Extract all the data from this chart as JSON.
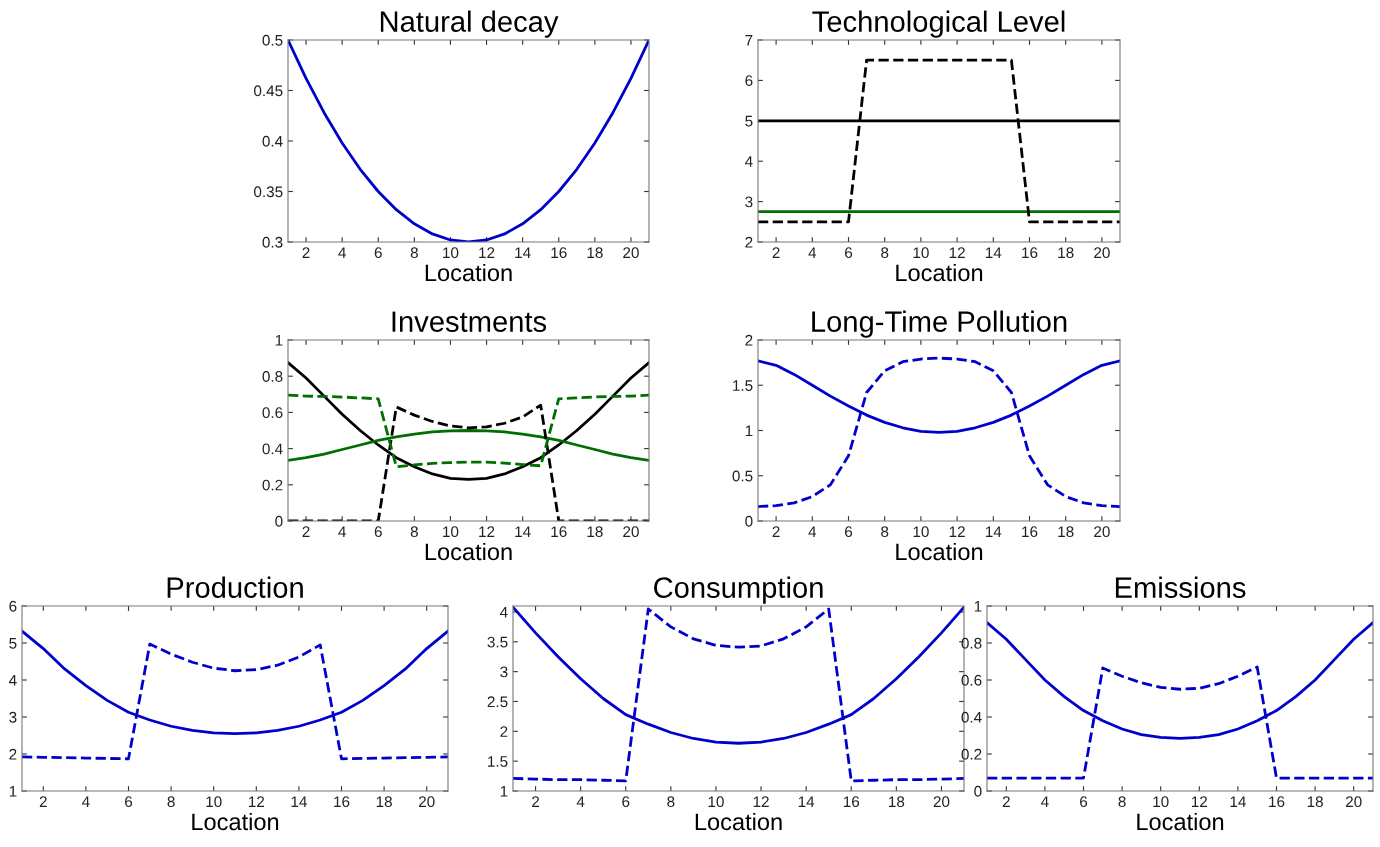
{
  "chart_data": [
    {
      "type": "line",
      "title": "Natural decay",
      "xlabel": "Location",
      "x": [
        1,
        2,
        3,
        4,
        5,
        6,
        7,
        8,
        9,
        10,
        11,
        12,
        13,
        14,
        15,
        16,
        17,
        18,
        19,
        20,
        21
      ],
      "xlim": [
        1,
        21
      ],
      "xticks": [
        2,
        4,
        6,
        8,
        10,
        12,
        14,
        16,
        18,
        20
      ],
      "ylim": [
        0.3,
        0.5
      ],
      "yticks": [
        0.3,
        0.35,
        0.4,
        0.45,
        0.5
      ],
      "grid": false,
      "series": [
        {
          "color": "#0000cc",
          "line_style": "solid",
          "values": [
            0.5,
            0.462,
            0.428,
            0.398,
            0.372,
            0.35,
            0.332,
            0.318,
            0.308,
            0.302,
            0.3,
            0.302,
            0.308,
            0.318,
            0.332,
            0.35,
            0.372,
            0.398,
            0.428,
            0.462,
            0.5
          ]
        }
      ]
    },
    {
      "type": "line",
      "title": "Technological Level",
      "xlabel": "Location",
      "x": [
        1,
        2,
        3,
        4,
        5,
        6,
        7,
        8,
        9,
        10,
        11,
        12,
        13,
        14,
        15,
        16,
        17,
        18,
        19,
        20,
        21
      ],
      "xlim": [
        1,
        21
      ],
      "xticks": [
        2,
        4,
        6,
        8,
        10,
        12,
        14,
        16,
        18,
        20
      ],
      "ylim": [
        2,
        7
      ],
      "yticks": [
        2,
        3,
        4,
        5,
        6,
        7
      ],
      "grid": false,
      "series": [
        {
          "color": "#000000",
          "line_style": "solid",
          "values": [
            5,
            5,
            5,
            5,
            5,
            5,
            5,
            5,
            5,
            5,
            5,
            5,
            5,
            5,
            5,
            5,
            5,
            5,
            5,
            5,
            5
          ]
        },
        {
          "color": "#006e00",
          "line_style": "solid",
          "values": [
            2.75,
            2.75,
            2.75,
            2.75,
            2.75,
            2.75,
            2.75,
            2.75,
            2.75,
            2.75,
            2.75,
            2.75,
            2.75,
            2.75,
            2.75,
            2.75,
            2.75,
            2.75,
            2.75,
            2.75,
            2.75
          ]
        },
        {
          "color": "#000000",
          "line_style": "dashed",
          "values": [
            2.5,
            2.5,
            2.5,
            2.5,
            2.5,
            2.5,
            6.5,
            6.5,
            6.5,
            6.5,
            6.5,
            6.5,
            6.5,
            6.5,
            6.5,
            2.5,
            2.5,
            2.5,
            2.5,
            2.5,
            2.5
          ]
        }
      ]
    },
    {
      "type": "line",
      "title": "Investments",
      "xlabel": "Location",
      "x": [
        1,
        2,
        3,
        4,
        5,
        6,
        7,
        8,
        9,
        10,
        11,
        12,
        13,
        14,
        15,
        16,
        17,
        18,
        19,
        20,
        21
      ],
      "xlim": [
        1,
        21
      ],
      "xticks": [
        2,
        4,
        6,
        8,
        10,
        12,
        14,
        16,
        18,
        20
      ],
      "ylim": [
        0,
        1
      ],
      "yticks": [
        0,
        0.2,
        0.4,
        0.6,
        0.8,
        1
      ],
      "grid": false,
      "series": [
        {
          "color": "#000000",
          "line_style": "solid",
          "values": [
            0.875,
            0.79,
            0.69,
            0.59,
            0.5,
            0.42,
            0.35,
            0.3,
            0.26,
            0.235,
            0.23,
            0.235,
            0.26,
            0.3,
            0.35,
            0.42,
            0.5,
            0.59,
            0.69,
            0.79,
            0.875
          ]
        },
        {
          "color": "#006e00",
          "line_style": "solid",
          "values": [
            0.335,
            0.35,
            0.37,
            0.395,
            0.42,
            0.445,
            0.465,
            0.48,
            0.492,
            0.498,
            0.5,
            0.498,
            0.492,
            0.48,
            0.465,
            0.445,
            0.42,
            0.395,
            0.37,
            0.35,
            0.335
          ]
        },
        {
          "color": "#000000",
          "line_style": "dashed",
          "values": [
            0,
            0,
            0,
            0,
            0,
            0,
            0.63,
            0.585,
            0.55,
            0.525,
            0.515,
            0.52,
            0.54,
            0.575,
            0.64,
            0,
            0,
            0,
            0,
            0,
            0
          ]
        },
        {
          "color": "#006e00",
          "line_style": "dashed",
          "values": [
            0.695,
            0.69,
            0.688,
            0.685,
            0.68,
            0.675,
            0.3,
            0.31,
            0.318,
            0.323,
            0.325,
            0.325,
            0.32,
            0.312,
            0.305,
            0.675,
            0.68,
            0.685,
            0.688,
            0.69,
            0.695
          ]
        }
      ]
    },
    {
      "type": "line",
      "title": "Long-Time Pollution",
      "xlabel": "Location",
      "x": [
        1,
        2,
        3,
        4,
        5,
        6,
        7,
        8,
        9,
        10,
        11,
        12,
        13,
        14,
        15,
        16,
        17,
        18,
        19,
        20,
        21
      ],
      "xlim": [
        1,
        21
      ],
      "xticks": [
        2,
        4,
        6,
        8,
        10,
        12,
        14,
        16,
        18,
        20
      ],
      "ylim": [
        0,
        2
      ],
      "yticks": [
        0,
        0.5,
        1,
        1.5,
        2
      ],
      "grid": false,
      "series": [
        {
          "color": "#0000cc",
          "line_style": "solid",
          "values": [
            1.77,
            1.72,
            1.62,
            1.5,
            1.38,
            1.27,
            1.17,
            1.09,
            1.03,
            0.99,
            0.98,
            0.99,
            1.03,
            1.09,
            1.17,
            1.27,
            1.38,
            1.5,
            1.62,
            1.72,
            1.77
          ]
        },
        {
          "color": "#0000cc",
          "line_style": "dashed",
          "values": [
            0.16,
            0.17,
            0.2,
            0.27,
            0.4,
            0.72,
            1.42,
            1.66,
            1.76,
            1.79,
            1.8,
            1.79,
            1.76,
            1.66,
            1.42,
            0.72,
            0.4,
            0.27,
            0.2,
            0.17,
            0.16
          ]
        }
      ]
    },
    {
      "type": "line",
      "title": "Production",
      "xlabel": "Location",
      "x": [
        1,
        2,
        3,
        4,
        5,
        6,
        7,
        8,
        9,
        10,
        11,
        12,
        13,
        14,
        15,
        16,
        17,
        18,
        19,
        20,
        21
      ],
      "xlim": [
        1,
        21
      ],
      "xticks": [
        2,
        4,
        6,
        8,
        10,
        12,
        14,
        16,
        18,
        20
      ],
      "ylim": [
        1,
        6
      ],
      "yticks": [
        1,
        2,
        3,
        4,
        5,
        6
      ],
      "grid": false,
      "series": [
        {
          "color": "#0000cc",
          "line_style": "solid",
          "values": [
            5.32,
            4.85,
            4.3,
            3.85,
            3.45,
            3.13,
            2.92,
            2.75,
            2.64,
            2.57,
            2.55,
            2.57,
            2.64,
            2.75,
            2.92,
            3.13,
            3.45,
            3.85,
            4.3,
            4.85,
            5.32
          ]
        },
        {
          "color": "#0000cc",
          "line_style": "dashed",
          "values": [
            1.92,
            1.91,
            1.9,
            1.89,
            1.88,
            1.87,
            4.97,
            4.7,
            4.48,
            4.32,
            4.25,
            4.28,
            4.4,
            4.62,
            4.95,
            1.87,
            1.88,
            1.89,
            1.9,
            1.91,
            1.92
          ]
        }
      ]
    },
    {
      "type": "line",
      "title": "Consumption",
      "xlabel": "Location",
      "x": [
        1,
        2,
        3,
        4,
        5,
        6,
        7,
        8,
        9,
        10,
        11,
        12,
        13,
        14,
        15,
        16,
        17,
        18,
        19,
        20,
        21
      ],
      "xlim": [
        1,
        21
      ],
      "xticks": [
        2,
        4,
        6,
        8,
        10,
        12,
        14,
        16,
        18,
        20
      ],
      "ylim": [
        1,
        4.1
      ],
      "yticks": [
        1,
        1.5,
        2,
        2.5,
        3,
        3.5,
        4
      ],
      "grid": false,
      "series": [
        {
          "color": "#0000cc",
          "line_style": "solid",
          "values": [
            4.08,
            3.65,
            3.25,
            2.88,
            2.55,
            2.28,
            2.12,
            1.98,
            1.88,
            1.82,
            1.8,
            1.82,
            1.88,
            1.98,
            2.12,
            2.28,
            2.55,
            2.88,
            3.25,
            3.65,
            4.08
          ]
        },
        {
          "color": "#0000cc",
          "line_style": "dashed",
          "values": [
            1.21,
            1.2,
            1.19,
            1.19,
            1.18,
            1.17,
            4.05,
            3.75,
            3.55,
            3.44,
            3.41,
            3.43,
            3.55,
            3.75,
            4.05,
            1.17,
            1.18,
            1.19,
            1.19,
            1.2,
            1.21
          ]
        }
      ]
    },
    {
      "type": "line",
      "title": "Emissions",
      "xlabel": "Location",
      "x": [
        1,
        2,
        3,
        4,
        5,
        6,
        7,
        8,
        9,
        10,
        11,
        12,
        13,
        14,
        15,
        16,
        17,
        18,
        19,
        20,
        21
      ],
      "xlim": [
        1,
        21
      ],
      "xticks": [
        2,
        4,
        6,
        8,
        10,
        12,
        14,
        16,
        18,
        20
      ],
      "ylim": [
        0,
        1
      ],
      "yticks": [
        0,
        0.2,
        0.4,
        0.6,
        0.8,
        1
      ],
      "grid": false,
      "series": [
        {
          "color": "#0000cc",
          "line_style": "solid",
          "values": [
            0.91,
            0.82,
            0.71,
            0.6,
            0.51,
            0.435,
            0.38,
            0.335,
            0.305,
            0.29,
            0.285,
            0.29,
            0.305,
            0.335,
            0.38,
            0.435,
            0.51,
            0.6,
            0.71,
            0.82,
            0.91
          ]
        },
        {
          "color": "#0000cc",
          "line_style": "dashed",
          "values": [
            0.07,
            0.07,
            0.07,
            0.07,
            0.07,
            0.07,
            0.665,
            0.62,
            0.585,
            0.56,
            0.55,
            0.555,
            0.58,
            0.62,
            0.67,
            0.07,
            0.07,
            0.07,
            0.07,
            0.07,
            0.07
          ]
        }
      ]
    }
  ]
}
